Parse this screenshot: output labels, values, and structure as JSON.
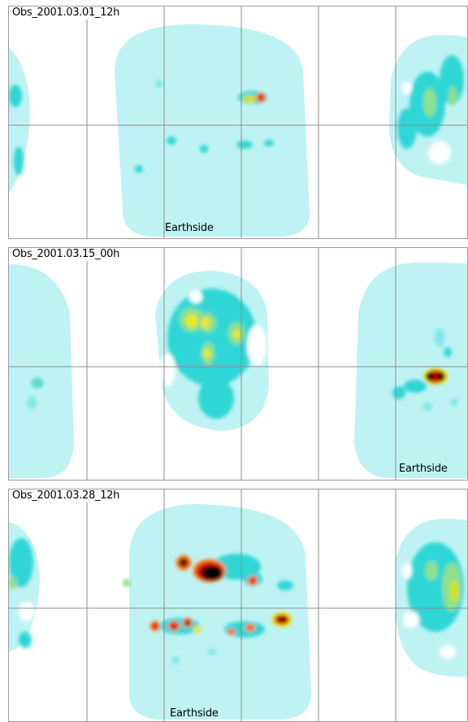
{
  "panels": [
    {
      "observation_label": "Obs_2001.03.01_12h",
      "earthside_label": "Earthside"
    },
    {
      "observation_label": "Obs_2001.03.15_00h",
      "earthside_label": "Earthside"
    },
    {
      "observation_label": "Obs_2001.03.28_12h",
      "earthside_label": "Earthside"
    }
  ],
  "colors": {
    "disk_fill": "#bff3f3",
    "grid_line": "#8c8c8c",
    "panel_border": "#9a9a9a",
    "colorscale": [
      "#bff3f3",
      "#2fd6d6",
      "#8ee08e",
      "#f2e600",
      "#ff6a00",
      "#c80000",
      "#000000"
    ]
  }
}
